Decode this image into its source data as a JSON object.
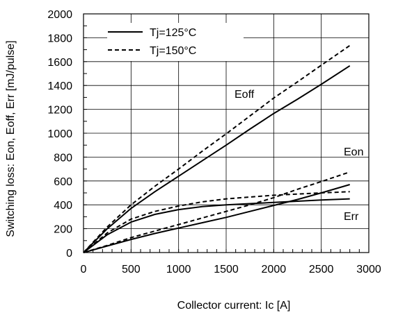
{
  "chart_data": {
    "type": "line",
    "xlabel": "Collector current: Ic [A]",
    "ylabel": "Switching loss: Eon, Eoff, Err [mJ/pulse]",
    "xlim": [
      0,
      3000
    ],
    "ylim": [
      0,
      2000
    ],
    "xticks": [
      0,
      500,
      1000,
      1500,
      2000,
      2500,
      3000
    ],
    "yticks": [
      0,
      200,
      400,
      600,
      800,
      1000,
      1200,
      1400,
      1600,
      1800,
      2000
    ],
    "xtick_labels": [
      "0",
      "500",
      "1000",
      "1500",
      "2000",
      "2500",
      "3000"
    ],
    "ytick_labels": [
      "0",
      "200",
      "400",
      "600",
      "800",
      "1000",
      "1200",
      "1400",
      "1600",
      "1800",
      "2000"
    ],
    "grid": true,
    "legend_position": "top-left",
    "legend": [
      {
        "label": "Tj=125°C",
        "style": "solid"
      },
      {
        "label": "Tj=150°C",
        "style": "dashed"
      }
    ],
    "annotations": {
      "eoff": "Eoff",
      "eon": "Eon",
      "err": "Err"
    },
    "series": [
      {
        "curve": "Eoff",
        "tj": "125",
        "style": "solid",
        "x": [
          0,
          250,
          500,
          750,
          1000,
          1250,
          1500,
          1750,
          2000,
          2250,
          2500,
          2800
        ],
        "y": [
          0,
          200,
          370,
          510,
          640,
          770,
          900,
          1035,
          1165,
          1285,
          1410,
          1565
        ]
      },
      {
        "curve": "Eoff",
        "tj": "150",
        "style": "dashed",
        "x": [
          0,
          250,
          500,
          750,
          1000,
          1250,
          1500,
          1750,
          2000,
          2250,
          2500,
          2800
        ],
        "y": [
          0,
          215,
          400,
          555,
          700,
          850,
          995,
          1145,
          1295,
          1430,
          1570,
          1735
        ]
      },
      {
        "curve": "Eon",
        "tj": "125",
        "style": "solid",
        "x": [
          0,
          250,
          500,
          750,
          1000,
          1250,
          1500,
          1750,
          2000,
          2250,
          2500,
          2800
        ],
        "y": [
          0,
          55,
          110,
          160,
          205,
          250,
          295,
          345,
          395,
          445,
          500,
          570
        ]
      },
      {
        "curve": "Eon",
        "tj": "150",
        "style": "dashed",
        "x": [
          0,
          250,
          500,
          750,
          1000,
          1250,
          1500,
          1750,
          2000,
          2250,
          2500,
          2800
        ],
        "y": [
          0,
          60,
          125,
          180,
          235,
          290,
          345,
          400,
          460,
          530,
          595,
          675
        ]
      },
      {
        "curve": "Err",
        "tj": "125",
        "style": "solid",
        "x": [
          0,
          250,
          500,
          750,
          1000,
          1250,
          1500,
          1750,
          2000,
          2250,
          2500,
          2800
        ],
        "y": [
          0,
          150,
          255,
          320,
          360,
          385,
          400,
          410,
          420,
          430,
          440,
          450
        ]
      },
      {
        "curve": "Err",
        "tj": "150",
        "style": "dashed",
        "x": [
          0,
          250,
          500,
          750,
          1000,
          1250,
          1500,
          1750,
          2000,
          2250,
          2500,
          2800
        ],
        "y": [
          0,
          165,
          280,
          345,
          390,
          425,
          450,
          465,
          480,
          490,
          500,
          510
        ]
      }
    ]
  },
  "colors": {
    "line": "#000000",
    "grid": "#000000",
    "background": "#ffffff"
  }
}
